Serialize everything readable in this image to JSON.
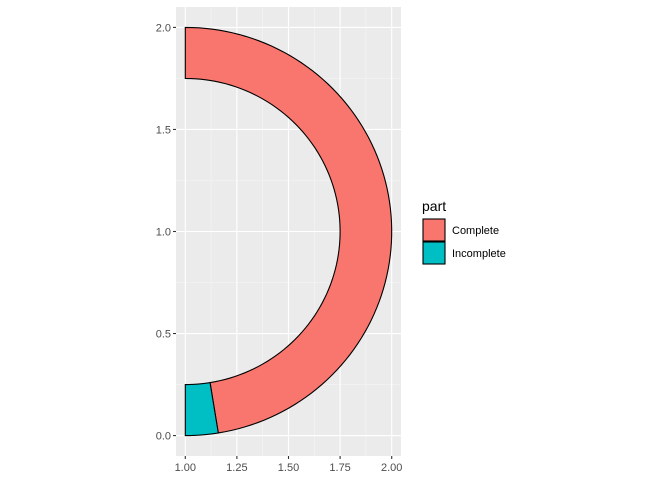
{
  "chart_data": {
    "type": "area",
    "title": "",
    "xlabel": "",
    "ylabel": "",
    "xlim": [
      0.955,
      2.045
    ],
    "ylim": [
      -0.1,
      2.1
    ],
    "x_ticks": [
      1.0,
      1.25,
      1.5,
      1.75,
      2.0
    ],
    "x_tick_labels": [
      "1.00",
      "1.25",
      "1.50",
      "1.75",
      "2.00"
    ],
    "y_ticks": [
      0.0,
      0.5,
      1.0,
      1.5,
      2.0
    ],
    "y_tick_labels": [
      "0.0",
      "0.5",
      "1.0",
      "1.5",
      "2.0"
    ],
    "grid": true,
    "legend_position": "right",
    "legend_title": "part",
    "series": [
      {
        "name": "Complete",
        "color": "#F8766D",
        "center": [
          1.0,
          1.0
        ],
        "r_inner": 0.75,
        "r_outer": 1.0,
        "angle_start_deg": 90,
        "angle_end_deg": -80.8
      },
      {
        "name": "Incomplete",
        "color": "#00BFC4",
        "center": [
          1.0,
          1.0
        ],
        "r_inner": 0.75,
        "r_outer": 1.0,
        "angle_start_deg": -80.8,
        "angle_end_deg": -90
      }
    ]
  }
}
